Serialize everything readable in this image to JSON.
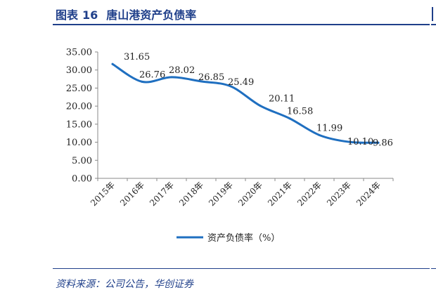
{
  "header": {
    "figure_label": "图表",
    "figure_number": "16",
    "title": "唐山港资产负债率"
  },
  "footer": {
    "source": "资料来源：公司公告，华创证券"
  },
  "colors": {
    "accent": "#1f3f8a",
    "series": "#1f6fc0"
  },
  "chart_data": {
    "type": "line",
    "categories": [
      "2015年",
      "2016年",
      "2017年",
      "2018年",
      "2019年",
      "2020年",
      "2021年",
      "2022年",
      "2023年",
      "2024年"
    ],
    "series": [
      {
        "name": "资产负债率（%）",
        "values": [
          31.65,
          26.76,
          28.02,
          26.85,
          25.49,
          20.11,
          16.58,
          11.99,
          10.1,
          9.86
        ],
        "labels": [
          "31.65",
          "26.76",
          "28.02",
          "26.85",
          "25.49",
          "20.11",
          "16.58",
          "11.99",
          "10.10",
          "9.86"
        ]
      }
    ],
    "y_ticks": [
      "0.00",
      "5.00",
      "10.00",
      "15.00",
      "20.00",
      "25.00",
      "30.00",
      "35.00"
    ],
    "ylim": [
      0,
      35
    ],
    "grid": false,
    "legend": "bottom-center"
  }
}
